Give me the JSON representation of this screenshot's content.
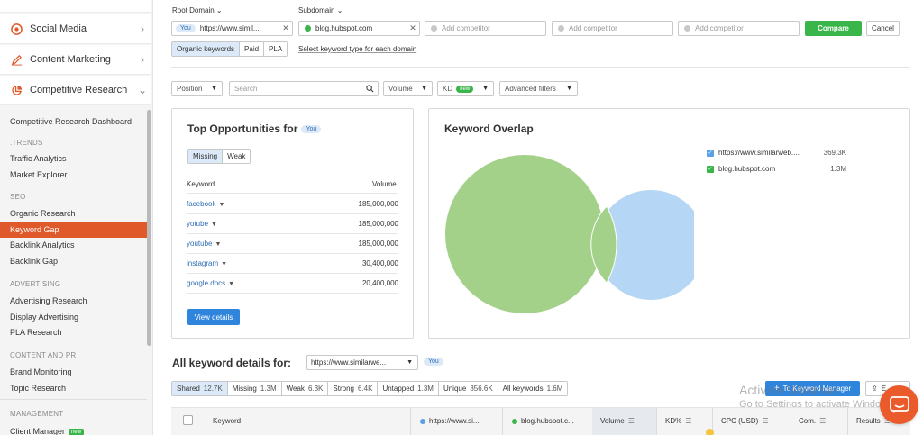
{
  "sidebar": {
    "main_items": [
      {
        "label": "Social Media",
        "icon": "target-icon"
      },
      {
        "label": "Content Marketing",
        "icon": "pencil-icon"
      },
      {
        "label": "Competitive Research",
        "icon": "chart-pie-icon"
      }
    ],
    "sub_items": {
      "dashboard": "Competitive Research Dashboard",
      "trends_head": ".TRENDS",
      "traffic": "Traffic Analytics",
      "market": "Market Explorer",
      "seo_head": "SEO",
      "organic": "Organic Research",
      "keyword_gap": "Keyword Gap",
      "backlink_analytics": "Backlink Analytics",
      "backlink_gap": "Backlink Gap",
      "adv_head": "ADVERTISING",
      "adv_research": "Advertising Research",
      "display": "Display Advertising",
      "pla": "PLA Research",
      "content_head": "CONTENT AND PR",
      "brand": "Brand Monitoring",
      "topic": "Topic Research",
      "mgmt_head": "MANAGEMENT",
      "client": "Client Manager",
      "client_badge": "new"
    }
  },
  "domains": {
    "root_label": "Root Domain",
    "sub_label": "Subdomain",
    "you": "You",
    "domain1": "https://www.simil...",
    "domain2": "blog.hubspot.com",
    "add_competitor": "Add competitor",
    "compare": "Compare",
    "cancel": "Cancel",
    "kw_types": [
      "Organic keywords",
      "Paid",
      "PLA"
    ],
    "select_type": "Select keyword type for each domain"
  },
  "filters": {
    "position": "Position",
    "search_placeholder": "Search",
    "volume": "Volume",
    "kd": "KD",
    "kd_badge": "new",
    "advanced": "Advanced filters"
  },
  "opportunities": {
    "title": "Top Opportunities for",
    "you": "You",
    "tabs": [
      "Missing",
      "Weak"
    ],
    "col_keyword": "Keyword",
    "col_volume": "Volume",
    "rows": [
      {
        "keyword": "facebook",
        "volume": "185,000,000"
      },
      {
        "keyword": "yotube",
        "volume": "185,000,000"
      },
      {
        "keyword": "youtube",
        "volume": "185,000,000"
      },
      {
        "keyword": "instagram",
        "volume": "30,400,000"
      },
      {
        "keyword": "google docs",
        "volume": "20,400,000"
      }
    ],
    "view_details": "View details"
  },
  "overlap": {
    "title": "Keyword Overlap",
    "legend": [
      {
        "name": "https://www.similarweb....",
        "count": "369.3K",
        "color": "#5aa0e6"
      },
      {
        "name": "blog.hubspot.com",
        "count": "1.3M",
        "color": "#3ab549"
      }
    ]
  },
  "details": {
    "title": "All keyword details for:",
    "select_value": "https://www.similarwe...",
    "you": "You",
    "tabs": [
      {
        "label": "Shared",
        "count": "12.7K"
      },
      {
        "label": "Missing",
        "count": "1.3M"
      },
      {
        "label": "Weak",
        "count": "6.3K"
      },
      {
        "label": "Strong",
        "count": "6.4K"
      },
      {
        "label": "Untapped",
        "count": "1.3M"
      },
      {
        "label": "Unique",
        "count": "356.6K"
      },
      {
        "label": "All keywords",
        "count": "1.6M"
      }
    ],
    "to_keyword_manager": "To Keyword Manager",
    "export": "E...",
    "watermark1": "Activate Windows",
    "watermark2": "Go to Settings to activate Windows.",
    "columns": {
      "keyword": "Keyword",
      "d1": "https://www.si...",
      "d2": "blog.hubspot.c...",
      "volume": "Volume",
      "kd": "KD%",
      "cpc": "CPC (USD)",
      "com": "Com.",
      "results": "Results"
    }
  }
}
